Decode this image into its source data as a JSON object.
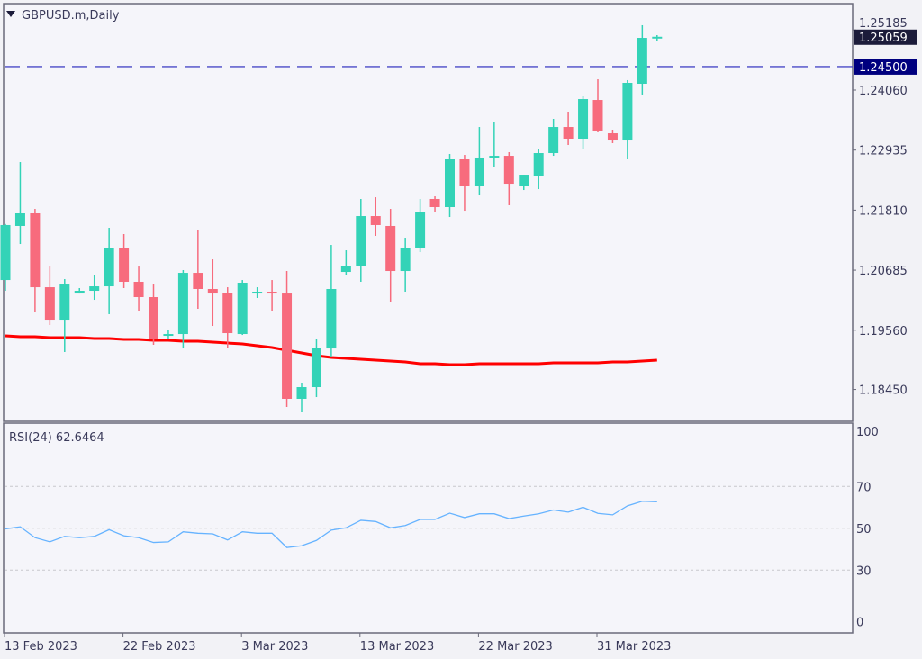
{
  "header": {
    "symbol_title": "GBPUSD.m,Daily"
  },
  "colors": {
    "background": "#f5f5fa",
    "bull": "#33d3b7",
    "bear": "#f76b7d",
    "ma": "#ff0000",
    "rsi": "#66b3ff",
    "level_line": "#4a4ac8",
    "bid_box": "#1c1c3a",
    "level_box": "#00007f",
    "frame": "#6a6a7a"
  },
  "chart_data": [
    {
      "type": "candlestick",
      "title": "GBPUSD.m,Daily",
      "ylim": [
        1.179,
        1.2585
      ],
      "y_ticks": [
        "1.25185",
        "1.24060",
        "1.22935",
        "1.21810",
        "1.20685",
        "1.19560",
        "1.18450"
      ],
      "x_ticks": [
        {
          "index": 0,
          "label": "13 Feb 2023"
        },
        {
          "index": 8,
          "label": "22 Feb 2023"
        },
        {
          "index": 16,
          "label": "3 Mar 2023"
        },
        {
          "index": 24,
          "label": "13 Mar 2023"
        },
        {
          "index": 32,
          "label": "22 Mar 2023"
        },
        {
          "index": 40,
          "label": "31 Mar 2023"
        }
      ],
      "current_price": {
        "value": 1.25059,
        "label": "1.25059"
      },
      "horizontal_level": {
        "value": 1.245,
        "label": "1.24500"
      },
      "ohlc": [
        [
          1.205,
          1.2155,
          1.20298,
          1.2153
        ],
        [
          1.21513,
          1.2271,
          1.21175,
          1.21749
        ],
        [
          1.21749,
          1.21833,
          1.19893,
          1.20365
        ],
        [
          1.20365,
          1.20753,
          1.19657,
          1.19741
        ],
        [
          1.19741,
          1.20517,
          1.19151,
          1.20416
        ],
        [
          1.20247,
          1.20349,
          1.20247,
          1.20298
        ],
        [
          1.20298,
          1.20585,
          1.20129,
          1.20382
        ],
        [
          1.20382,
          1.21479,
          1.1986,
          1.21091
        ],
        [
          1.21091,
          1.21361,
          1.20349,
          1.20467
        ],
        [
          1.20467,
          1.20753,
          1.1991,
          1.2018
        ],
        [
          1.2018,
          1.20416,
          1.19286,
          1.19387
        ],
        [
          1.19455,
          1.19573,
          1.19387,
          1.19488
        ],
        [
          1.19488,
          1.20686,
          1.19218,
          1.20635
        ],
        [
          1.20635,
          1.21445,
          1.19961,
          1.20332
        ],
        [
          1.20332,
          1.20888,
          1.1964,
          1.20247
        ],
        [
          1.20264,
          1.20365,
          1.19235,
          1.19505
        ],
        [
          1.19488,
          1.205,
          1.19471,
          1.2045
        ],
        [
          1.20247,
          1.20365,
          1.20163,
          1.20281
        ],
        [
          1.20281,
          1.205,
          1.19927,
          1.20247
        ],
        [
          1.20247,
          1.20669,
          1.18122,
          1.18274
        ],
        [
          1.18274,
          1.18577,
          1.18021,
          1.18493
        ],
        [
          1.18493,
          1.19404,
          1.18307,
          1.19235
        ],
        [
          1.19218,
          1.21158,
          1.1905,
          1.20332
        ],
        [
          1.20652,
          1.21057,
          1.20585,
          1.2077
        ],
        [
          1.2077,
          1.22019,
          1.20467,
          1.21698
        ],
        [
          1.21698,
          1.22052,
          1.21327,
          1.2153
        ],
        [
          1.21513,
          1.21833,
          1.20096,
          1.20669
        ],
        [
          1.20669,
          1.21293,
          1.20281,
          1.21091
        ],
        [
          1.21091,
          1.22019,
          1.21023,
          1.21766
        ],
        [
          1.22019,
          1.22069,
          1.21782,
          1.21867
        ],
        [
          1.21867,
          1.22862,
          1.21681,
          1.22761
        ],
        [
          1.22761,
          1.22845,
          1.21799,
          1.22255
        ],
        [
          1.22255,
          1.23368,
          1.22086,
          1.22795
        ],
        [
          1.22795,
          1.23453,
          1.22609,
          1.22828
        ],
        [
          1.22828,
          1.22896,
          1.21901,
          1.22305
        ],
        [
          1.22255,
          1.22474,
          1.22187,
          1.22474
        ],
        [
          1.22457,
          1.22963,
          1.22204,
          1.22879
        ],
        [
          1.22879,
          1.2352,
          1.22828,
          1.23368
        ],
        [
          1.23368,
          1.23655,
          1.23031,
          1.23149
        ],
        [
          1.23149,
          1.23942,
          1.22947,
          1.23891
        ],
        [
          1.23874,
          1.24262,
          1.23267,
          1.23301
        ],
        [
          1.2325,
          1.23318,
          1.23065,
          1.23115
        ],
        [
          1.23115,
          1.24246,
          1.22761,
          1.24195
        ],
        [
          1.24178,
          1.25275,
          1.23976,
          1.25038
        ],
        [
          1.25038,
          1.25089,
          1.24988,
          1.25059
        ]
      ],
      "moving_average": [
        1.19455,
        1.19438,
        1.19438,
        1.19421,
        1.19421,
        1.19421,
        1.19404,
        1.19404,
        1.19387,
        1.19387,
        1.1937,
        1.1937,
        1.19353,
        1.19353,
        1.19336,
        1.19319,
        1.19303,
        1.19269,
        1.19235,
        1.19185,
        1.19134,
        1.19083,
        1.1905,
        1.19033,
        1.19016,
        1.18999,
        1.18982,
        1.18965,
        1.18931,
        1.18931,
        1.18915,
        1.18915,
        1.18931,
        1.18931,
        1.18931,
        1.18931,
        1.18931,
        1.18948,
        1.18948,
        1.18948,
        1.18948,
        1.18965,
        1.18965,
        1.18982,
        1.18999
      ]
    },
    {
      "type": "line",
      "title": "RSI(24) 62.6464",
      "ylim": [
        0,
        100
      ],
      "y_ticks": [
        "100",
        "70",
        "50",
        "30",
        "0"
      ],
      "levels": [
        70,
        50,
        30
      ],
      "values": [
        49.7,
        50.7,
        45.5,
        43.5,
        46.1,
        45.5,
        46.1,
        49.3,
        46.4,
        45.5,
        43.2,
        43.5,
        48.3,
        47.6,
        47.3,
        44.4,
        48.3,
        47.6,
        47.6,
        40.8,
        41.6,
        44.2,
        49.1,
        50.2,
        53.8,
        53.2,
        50.2,
        51.3,
        54.2,
        54.2,
        57.2,
        55.1,
        56.9,
        56.9,
        54.6,
        55.8,
        56.9,
        58.7,
        57.7,
        60.0,
        57.1,
        56.4,
        60.7,
        62.9,
        62.6464
      ]
    }
  ]
}
